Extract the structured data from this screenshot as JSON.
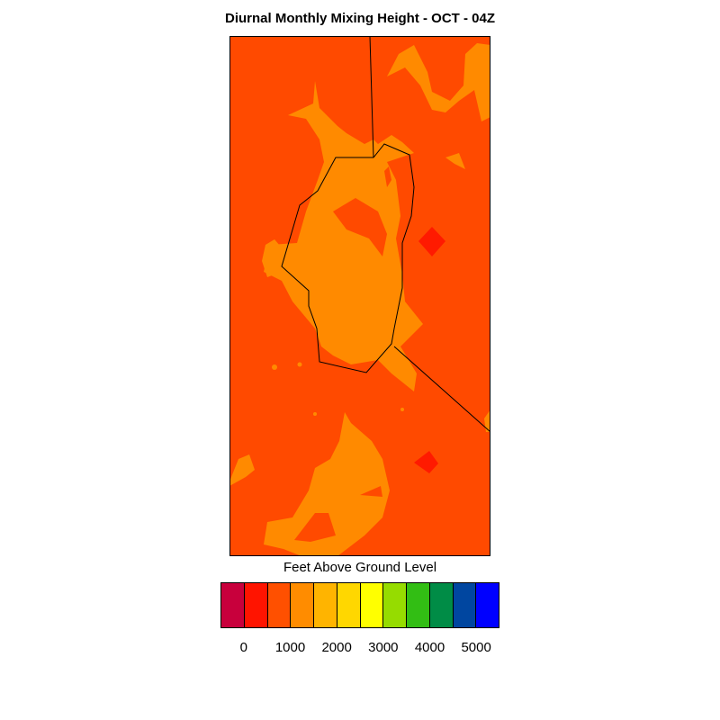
{
  "title": "Diurnal Monthly Mixing Height - OCT - 04Z",
  "map": {
    "background_color": "#ff4a00",
    "contour_colors": {
      "level_1000_2000": "#ff8a00",
      "level_0_1000_high": "#ff1a00"
    },
    "boundary_color": "#000000"
  },
  "legend": {
    "title": "Feet Above Ground Level",
    "colors": [
      "#c8003c",
      "#ff1400",
      "#ff5000",
      "#ff8c00",
      "#ffb400",
      "#ffd700",
      "#ffff00",
      "#96dc00",
      "#32be14",
      "#008c46",
      "#0046a0",
      "#0000ff"
    ],
    "tick_labels": [
      "0",
      "1000",
      "2000",
      "3000",
      "4000",
      "5000"
    ]
  }
}
